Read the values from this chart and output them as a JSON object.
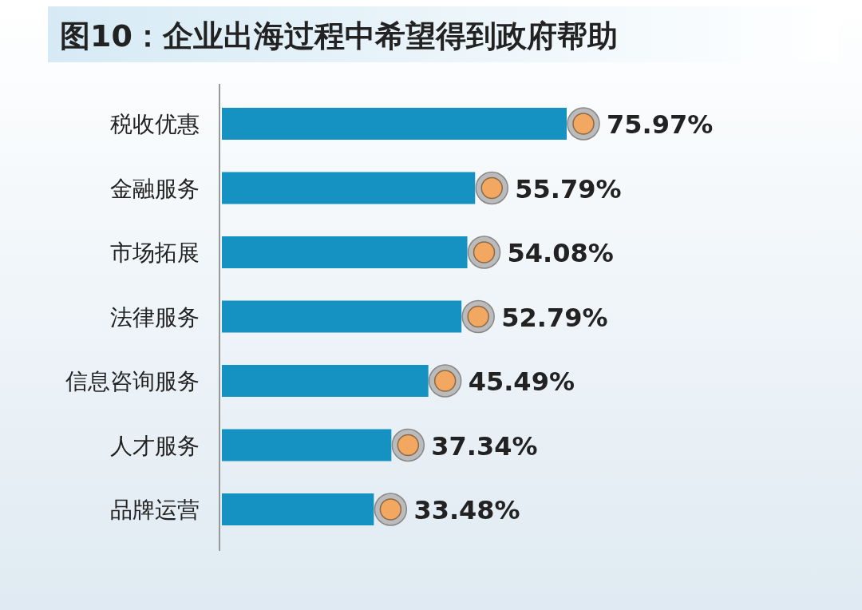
{
  "chart_data": {
    "type": "bar",
    "orientation": "horizontal",
    "title": "图10：企业出海过程中希望得到政府帮助",
    "categories": [
      "税收优惠",
      "金融服务",
      "市场拓展",
      "法律服务",
      "信息咨询服务",
      "人才服务",
      "品牌运营"
    ],
    "values": [
      75.97,
      55.79,
      54.08,
      52.79,
      45.49,
      37.34,
      33.48
    ],
    "value_labels": [
      "75.97%",
      "55.79%",
      "54.08%",
      "52.79%",
      "45.49%",
      "37.34%",
      "33.48%"
    ],
    "color": "#1592c2"
  }
}
